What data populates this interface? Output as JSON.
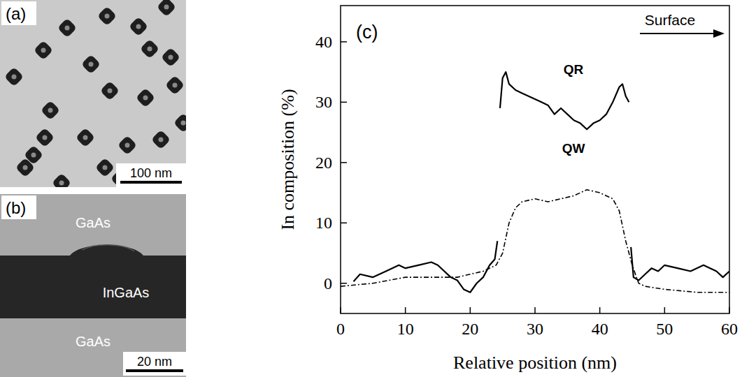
{
  "chart_data": {
    "type": "line",
    "title": "(c)",
    "x_label": "Relative position (nm)",
    "y_label": "In composition (%)",
    "annotations": [
      {
        "text": "Surface"
      }
    ],
    "xlim": [
      0,
      60
    ],
    "xticks": [
      0,
      10,
      20,
      30,
      40,
      50,
      60
    ],
    "ylim": [
      -5,
      46
    ],
    "yticks": [
      0,
      10,
      20,
      30,
      40
    ],
    "grid": false,
    "series": [
      {
        "name": "QR",
        "color": "#000000",
        "line_style": "solid",
        "x": [
          2,
          3,
          5,
          7,
          9,
          10,
          12,
          14,
          15,
          17,
          18,
          19,
          20,
          21,
          22,
          23,
          23.8,
          24.2,
          24.4,
          24.6,
          25,
          25.5,
          26,
          27,
          28,
          29,
          30,
          31,
          32,
          33,
          34,
          35,
          36,
          37,
          38,
          39,
          40,
          41,
          42,
          43,
          43.5,
          44,
          44.5,
          44.7,
          44.8,
          45.2,
          46,
          47,
          48,
          49,
          50,
          52,
          54,
          56,
          58,
          59,
          60
        ],
        "values": [
          0.3,
          1.5,
          1,
          2,
          3,
          2.5,
          3,
          3.5,
          3,
          1,
          0.5,
          -1,
          -1.5,
          0,
          1,
          3,
          4,
          7,
          null,
          29,
          34,
          35,
          33,
          32,
          31.5,
          31,
          30.5,
          30,
          29.5,
          28,
          29,
          28,
          27,
          26.5,
          25.5,
          26.5,
          27,
          28,
          30,
          32.5,
          33,
          31,
          30,
          null,
          6,
          1,
          0.5,
          1.5,
          2.5,
          2,
          3,
          2.5,
          2,
          3,
          2,
          1,
          2
        ]
      },
      {
        "name": "QW",
        "color": "#000000",
        "line_style": "dashdot",
        "x": [
          0,
          5,
          10,
          15,
          18,
          20,
          22,
          24,
          25,
          26,
          27,
          28,
          30,
          32,
          34,
          36,
          38,
          40,
          42,
          43,
          44,
          45,
          46,
          47,
          50,
          55,
          60
        ],
        "values": [
          -0.5,
          0,
          1,
          1,
          1,
          1.5,
          2,
          3,
          5,
          10,
          12.5,
          13.5,
          14,
          13.5,
          14,
          14.5,
          15.5,
          15,
          14,
          12,
          7,
          3,
          0,
          -0.5,
          -1,
          -1.5,
          -1.5
        ]
      }
    ]
  },
  "images": [
    {
      "letter": "(a)",
      "scale_bar": "100 nm"
    },
    {
      "letter": "(b)",
      "layers": [
        "GaAs",
        "InGaAs",
        "GaAs"
      ],
      "scale_bar": "20 nm"
    }
  ]
}
